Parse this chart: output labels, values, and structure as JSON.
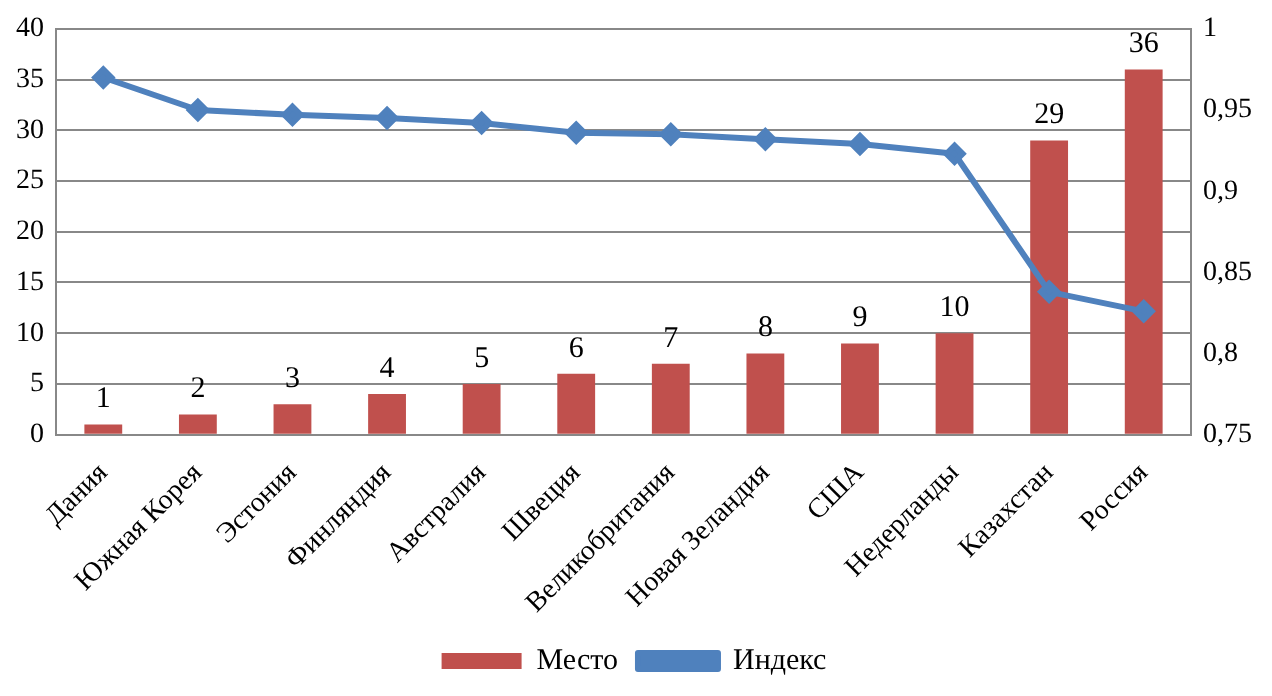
{
  "chart_data": {
    "type": "bar",
    "categories": [
      "Дания",
      "Южная Корея",
      "Эстония",
      "Финляндия",
      "Австралия",
      "Швеция",
      "Великобритания",
      "Новая Зеландия",
      "США",
      "Недерланды",
      "Казахстан",
      "Россия"
    ],
    "series": [
      {
        "name": "Место",
        "color": "#c0504d",
        "values": [
          1,
          2,
          3,
          4,
          5,
          6,
          7,
          8,
          9,
          10,
          29,
          36
        ],
        "data_labels": true
      },
      {
        "name": "Индекс",
        "type": "line",
        "axis": "y2",
        "color": "#4f81bd",
        "marker": "diamond",
        "values": [
          0.97,
          0.95,
          0.947,
          0.945,
          0.942,
          0.936,
          0.935,
          0.932,
          0.929,
          0.923,
          0.838,
          0.826
        ]
      }
    ],
    "ylim": [
      0,
      40
    ],
    "yticks": [
      0,
      5,
      10,
      15,
      20,
      25,
      30,
      35,
      40
    ],
    "y2lim": [
      0.75,
      1
    ],
    "y2ticks": [
      {
        "value": 0.75,
        "label": "0,75"
      },
      {
        "value": 0.8,
        "label": "0,8"
      },
      {
        "value": 0.85,
        "label": "0,85"
      },
      {
        "value": 0.9,
        "label": "0,9"
      },
      {
        "value": 0.95,
        "label": "0,95"
      },
      {
        "value": 1,
        "label": "1"
      }
    ],
    "grid": "y",
    "legend": "bottom"
  }
}
